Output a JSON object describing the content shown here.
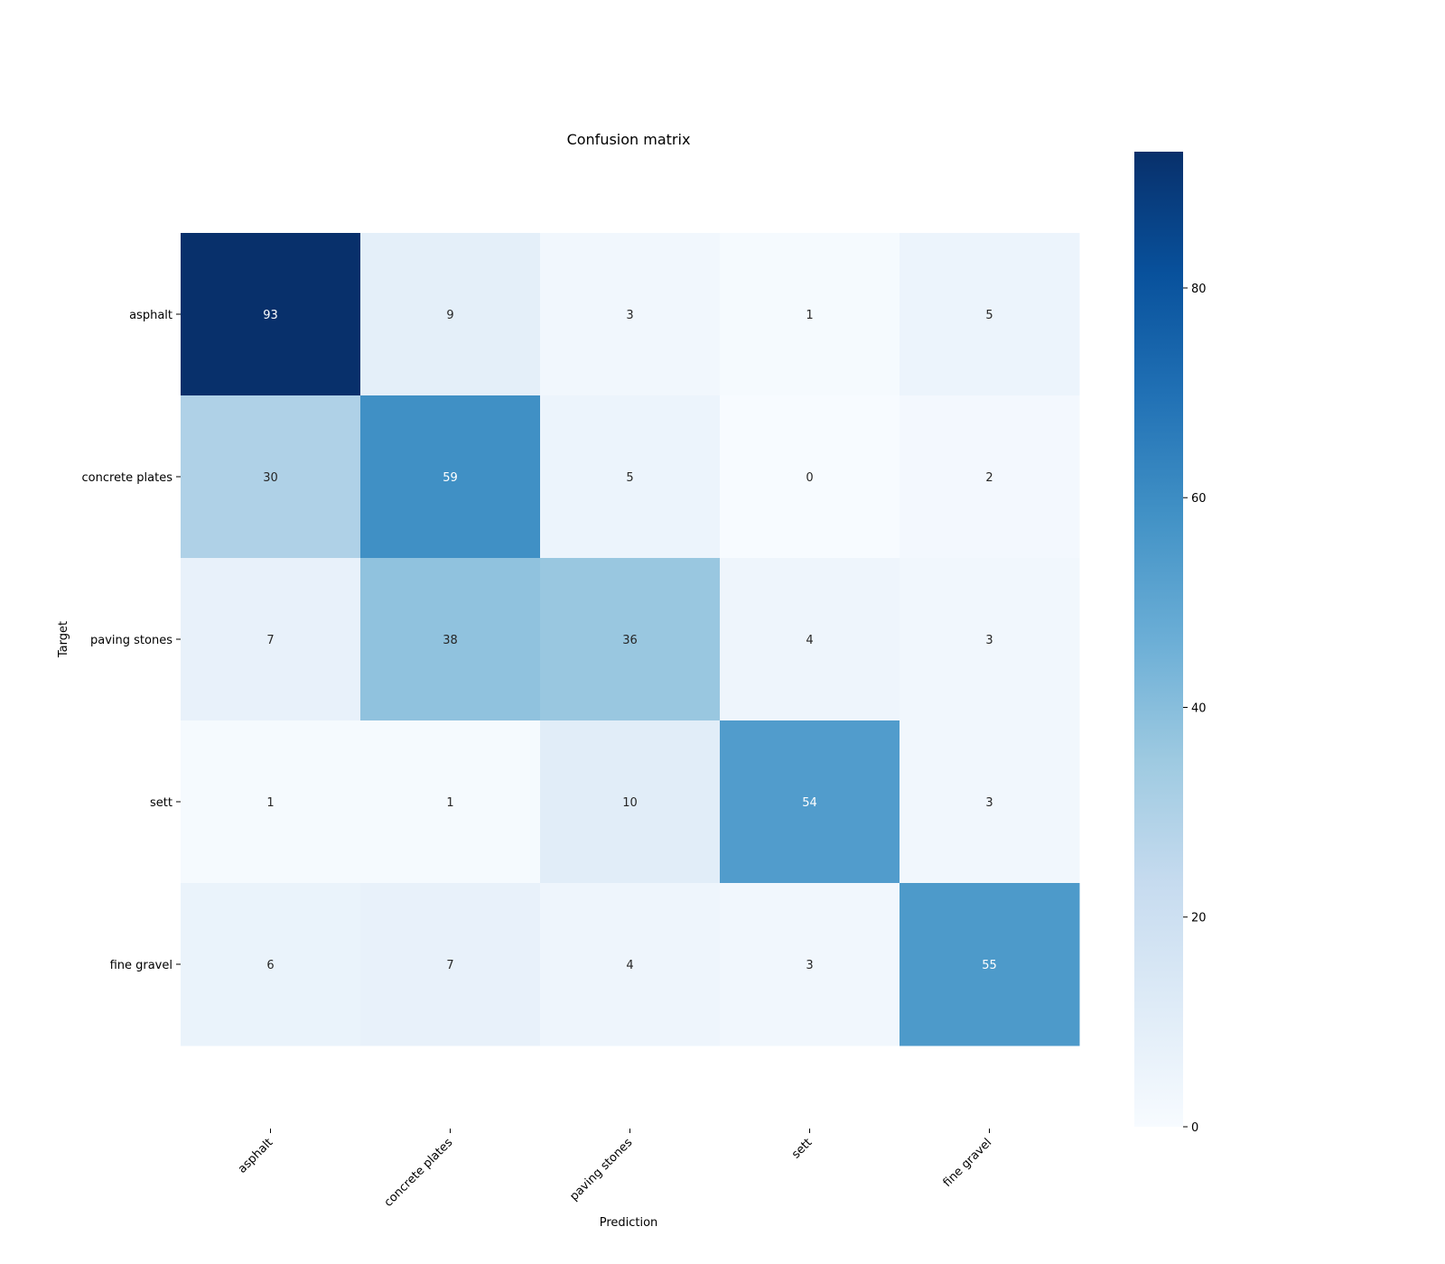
{
  "chart_data": {
    "type": "heatmap",
    "title": "Confusion matrix",
    "xlabel": "Prediction",
    "ylabel": "Target",
    "x_categories": [
      "asphalt",
      "concrete plates",
      "paving stones",
      "sett",
      "fine gravel"
    ],
    "y_categories": [
      "asphalt",
      "concrete plates",
      "paving stones",
      "sett",
      "fine gravel"
    ],
    "values": [
      [
        93,
        9,
        3,
        1,
        5
      ],
      [
        30,
        59,
        5,
        0,
        2
      ],
      [
        7,
        38,
        36,
        4,
        3
      ],
      [
        1,
        1,
        10,
        54,
        3
      ],
      [
        6,
        7,
        4,
        3,
        55
      ]
    ],
    "colormap": "Blues",
    "colorbar": {
      "min": 0,
      "max": 93,
      "ticks": [
        0,
        20,
        40,
        60,
        80
      ]
    },
    "grid": false
  }
}
